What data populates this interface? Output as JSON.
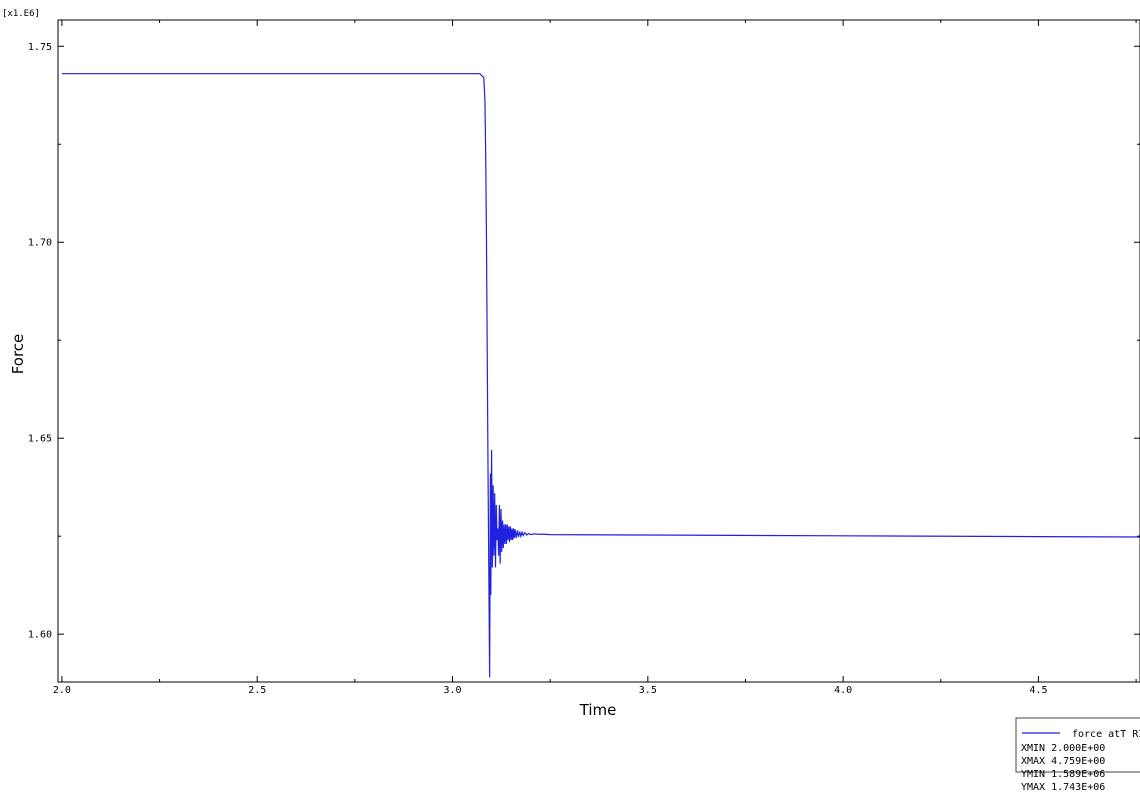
{
  "chart_data": {
    "type": "line",
    "scale_label": "[x1.E6]",
    "xlabel": "Time",
    "ylabel": "Force",
    "xlim": [
      1.99,
      4.76
    ],
    "ylim": [
      1.5878,
      1.7567
    ],
    "xticks": [
      2.0,
      2.5,
      3.0,
      3.5,
      4.0,
      4.5
    ],
    "xtick_labels": [
      "2.0",
      "2.5",
      "3.0",
      "3.5",
      "4.0",
      "4.5"
    ],
    "yticks": [
      1.6,
      1.65,
      1.7,
      1.75
    ],
    "ytick_labels": [
      "1.60",
      "1.65",
      "1.70",
      "1.75"
    ],
    "grid": false,
    "series": [
      {
        "name": "force atT RIG",
        "color": "#2020e0",
        "x": [
          2.0,
          3.07,
          3.08,
          3.083,
          3.085,
          3.087,
          3.089,
          3.091,
          3.093,
          3.095,
          3.097,
          3.098,
          3.1,
          3.102,
          3.104,
          3.106,
          3.108,
          3.11,
          3.112,
          3.114,
          3.116,
          3.118,
          3.12,
          3.122,
          3.124,
          3.126,
          3.128,
          3.13,
          3.132,
          3.134,
          3.136,
          3.138,
          3.14,
          3.142,
          3.144,
          3.146,
          3.148,
          3.15,
          3.152,
          3.154,
          3.156,
          3.158,
          3.16,
          3.163,
          3.166,
          3.169,
          3.172,
          3.175,
          3.178,
          3.181,
          3.185,
          3.19,
          3.195,
          3.2,
          3.21,
          3.22,
          3.235,
          3.25,
          3.5,
          4.0,
          4.5,
          4.759
        ],
        "y": [
          1.743,
          1.743,
          1.742,
          1.736,
          1.722,
          1.7,
          1.67,
          1.64,
          1.615,
          1.589,
          1.641,
          1.61,
          1.647,
          1.617,
          1.638,
          1.62,
          1.636,
          1.617,
          1.633,
          1.624,
          1.627,
          1.62,
          1.633,
          1.618,
          1.632,
          1.621,
          1.629,
          1.622,
          1.628,
          1.623,
          1.628,
          1.623,
          1.628,
          1.624,
          1.6275,
          1.6235,
          1.6275,
          1.624,
          1.627,
          1.624,
          1.627,
          1.6245,
          1.6268,
          1.6245,
          1.6265,
          1.6248,
          1.6262,
          1.625,
          1.626,
          1.6252,
          1.6259,
          1.6253,
          1.6257,
          1.6254,
          1.6256,
          1.6255,
          1.6255,
          1.6254,
          1.6253,
          1.6251,
          1.6249,
          1.6248
        ]
      }
    ]
  },
  "legend": {
    "series_label": "force atT RIG",
    "rows": [
      "XMIN  2.000E+00",
      "XMAX  4.759E+00",
      "YMIN  1.589E+06",
      "YMAX  1.743E+06"
    ]
  }
}
